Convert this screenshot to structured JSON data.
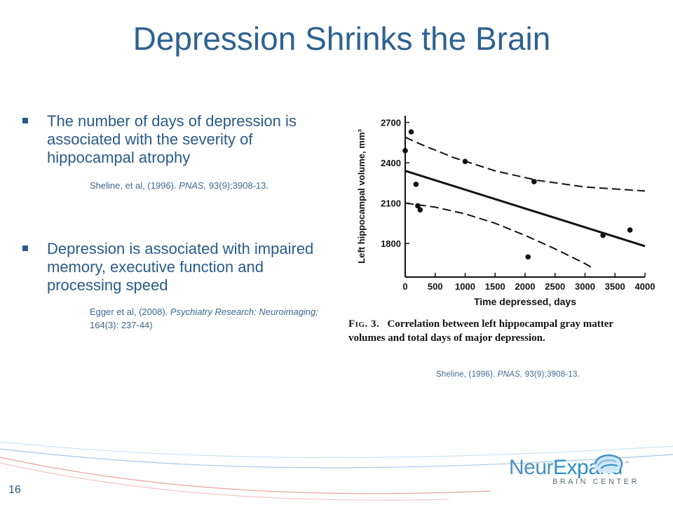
{
  "slide": {
    "title": "Depression Shrinks the Brain",
    "page_number": "16"
  },
  "bullets": [
    {
      "text": "The number of days of depression is associated with the severity of hippocampal atrophy",
      "citation": {
        "authors": "Sheline, et al, (1996). ",
        "journal": "PNAS,",
        "details": " 93(9);3908-13."
      }
    },
    {
      "text": "Depression is associated with impaired memory, executive function and processing speed",
      "citation": {
        "authors": "Egger et al, (2008). ",
        "journal": "Psychiatry Research: Neuroimaging;",
        "details": " 164(3): 237-44)"
      }
    }
  ],
  "figure": {
    "caption_label": "Fig. 3.",
    "caption_text": "Correlation between left hippocampal gray matter volumes and total days of major depression.",
    "source": {
      "authors": "Sheline, (1996). ",
      "journal": "PNAS,",
      "details": " 93(9);3908-13."
    }
  },
  "chart_data": {
    "type": "scatter",
    "xlabel": "Time depressed, days",
    "ylabel": "Left hippocampal volume, mm³",
    "xlim": [
      0,
      4000
    ],
    "ylim": [
      1550,
      2750
    ],
    "x_ticks": [
      0,
      500,
      1000,
      1500,
      2000,
      2500,
      3000,
      3500,
      4000
    ],
    "y_ticks": [
      1800,
      2100,
      2400,
      2700
    ],
    "grid": false,
    "legend": "none",
    "points": [
      {
        "x": 0,
        "y": 2490
      },
      {
        "x": 100,
        "y": 2630
      },
      {
        "x": 180,
        "y": 2240
      },
      {
        "x": 210,
        "y": 2080
      },
      {
        "x": 250,
        "y": 2050
      },
      {
        "x": 1000,
        "y": 2410
      },
      {
        "x": 2050,
        "y": 1700
      },
      {
        "x": 2150,
        "y": 2260
      },
      {
        "x": 3300,
        "y": 1860
      },
      {
        "x": 3750,
        "y": 1900
      }
    ],
    "regression_line": [
      {
        "x": 0,
        "y": 2340
      },
      {
        "x": 4000,
        "y": 1780
      }
    ],
    "confidence_upper": [
      {
        "x": 0,
        "y": 2590
      },
      {
        "x": 300,
        "y": 2530
      },
      {
        "x": 800,
        "y": 2440
      },
      {
        "x": 1500,
        "y": 2340
      },
      {
        "x": 2200,
        "y": 2270
      },
      {
        "x": 3000,
        "y": 2220
      },
      {
        "x": 4000,
        "y": 2190
      }
    ],
    "confidence_lower": [
      {
        "x": 0,
        "y": 2100
      },
      {
        "x": 500,
        "y": 2070
      },
      {
        "x": 1000,
        "y": 2020
      },
      {
        "x": 1500,
        "y": 1950
      },
      {
        "x": 2000,
        "y": 1860
      },
      {
        "x": 2500,
        "y": 1760
      },
      {
        "x": 3000,
        "y": 1650
      },
      {
        "x": 3150,
        "y": 1610
      }
    ],
    "colors": {
      "ink": "#111111",
      "background": "#ffffff"
    }
  },
  "logo": {
    "name_part1": "Neur",
    "name_part2": "Expand",
    "tagline": "BRAIN CENTER",
    "trademark": "™"
  }
}
